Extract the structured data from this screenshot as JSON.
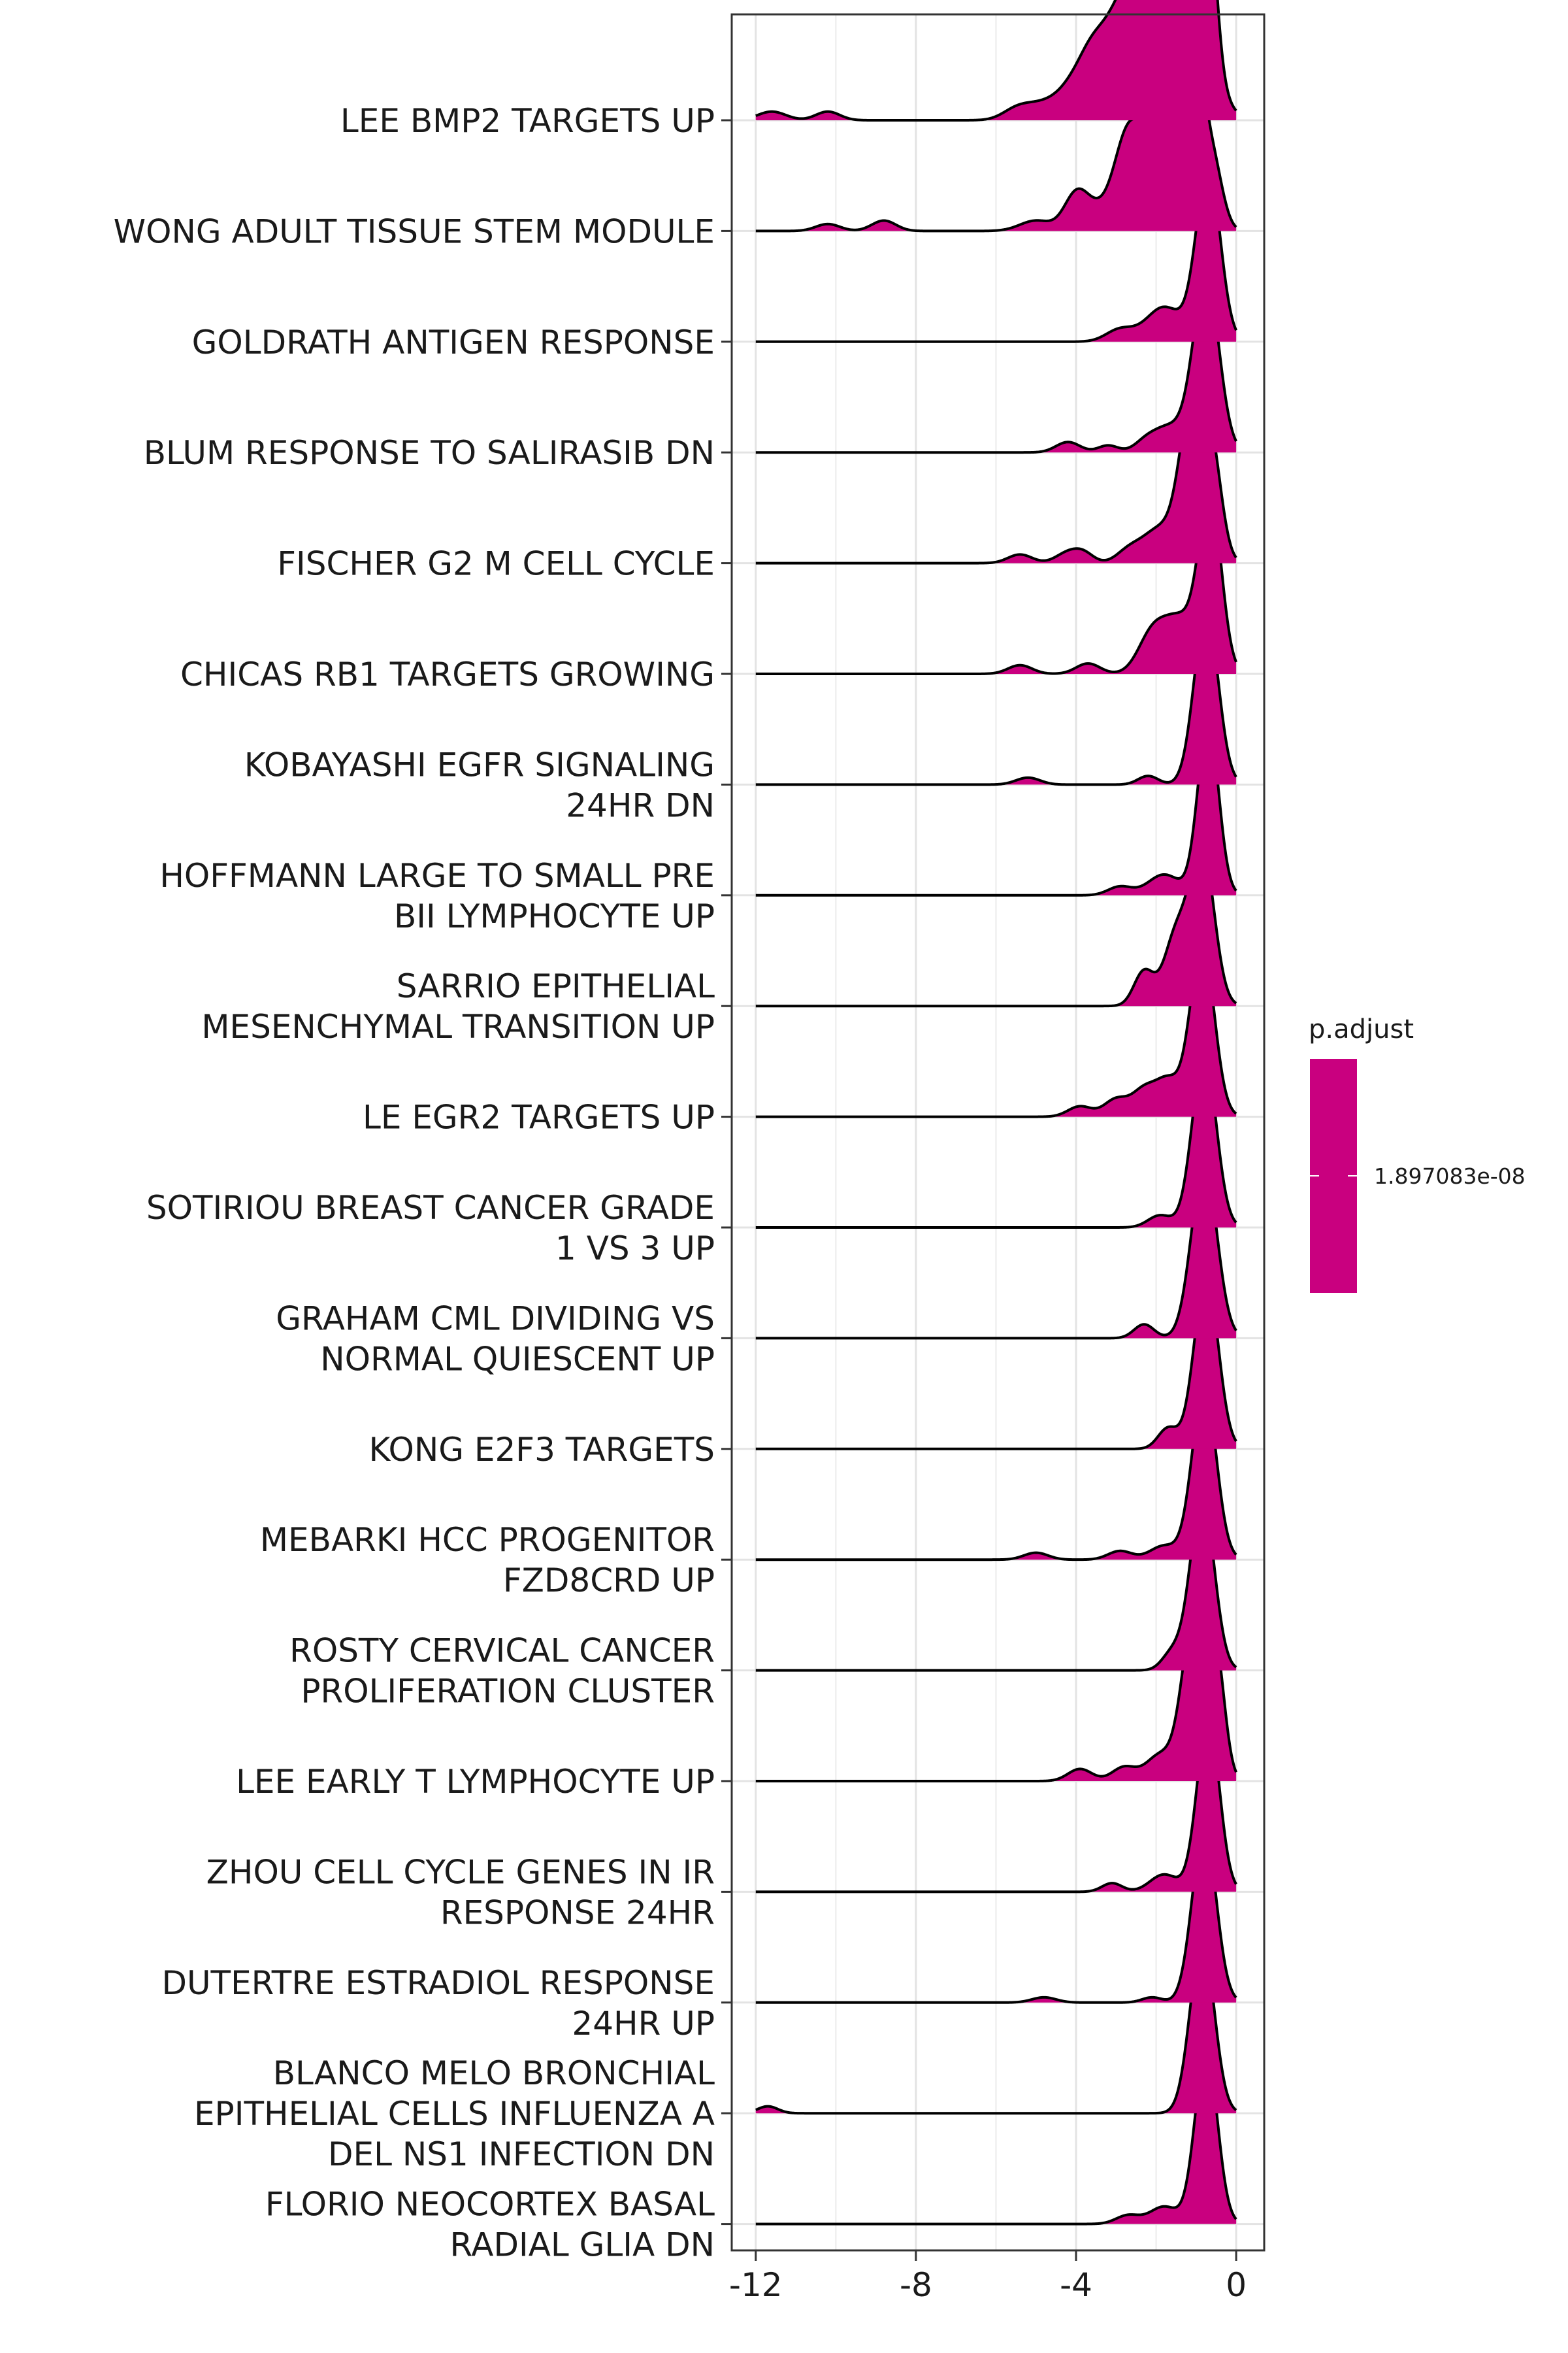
{
  "chart_data": {
    "type": "ridgeline",
    "title": "",
    "xlabel": "",
    "ylabel": "",
    "xlim": [
      -12.6,
      0.7
    ],
    "x_ticks": [
      -12,
      -8,
      -4,
      0
    ],
    "x_tick_labels": [
      "-12",
      "-8",
      "-4",
      "0"
    ],
    "grid": true,
    "fill_color": "#C9007F",
    "legend": {
      "title": "p.adjust",
      "position": "right",
      "entries": [
        "1.897083e-08"
      ]
    },
    "x_range": [
      -12,
      0
    ],
    "categories": [
      {
        "label": [
          "LEE BMP2 TARGETS UP"
        ],
        "range": [
          -12,
          0
        ],
        "peaks": [
          [
            -11.6,
            0.35,
            0.05
          ],
          [
            -10.2,
            0.3,
            0.05
          ],
          [
            -5.5,
            0.35,
            0.05
          ],
          [
            -5.0,
            0.45,
            0.05
          ],
          [
            -4.6,
            0.45,
            0.05
          ],
          [
            -4.0,
            0.4,
            0.14
          ],
          [
            -3.6,
            0.3,
            0.1
          ],
          [
            -3.0,
            0.6,
            0.3
          ],
          [
            -2.2,
            0.8,
            0.53
          ],
          [
            -1.8,
            0.6,
            0.45
          ],
          [
            -1.1,
            0.5,
            0.4
          ],
          [
            -0.75,
            0.22,
            1.0
          ]
        ]
      },
      {
        "label": [
          "WONG ADULT TISSUE STEM MODULE"
        ],
        "range": [
          -12,
          0
        ],
        "peaks": [
          [
            -10.2,
            0.3,
            0.04
          ],
          [
            -8.8,
            0.3,
            0.06
          ],
          [
            -5.0,
            0.4,
            0.06
          ],
          [
            -4.0,
            0.3,
            0.2
          ],
          [
            -3.5,
            0.35,
            0.1
          ],
          [
            -2.7,
            0.35,
            0.55
          ],
          [
            -2.0,
            0.35,
            0.45
          ],
          [
            -1.5,
            0.4,
            0.4
          ],
          [
            -1.05,
            0.22,
            0.9
          ],
          [
            -0.6,
            0.25,
            0.4
          ]
        ]
      },
      {
        "label": [
          "GOLDRATH ANTIGEN RESPONSE"
        ],
        "range": [
          -12,
          0
        ],
        "peaks": [
          [
            -2.9,
            0.35,
            0.07
          ],
          [
            -1.8,
            0.45,
            0.2
          ],
          [
            -0.7,
            0.3,
            1.0
          ]
        ]
      },
      {
        "label": [
          "BLUM RESPONSE TO SALIRASIB DN"
        ],
        "range": [
          -12,
          0
        ],
        "peaks": [
          [
            -4.2,
            0.3,
            0.06
          ],
          [
            -3.2,
            0.25,
            0.04
          ],
          [
            -2.3,
            0.25,
            0.03
          ],
          [
            -1.7,
            0.45,
            0.15
          ],
          [
            -0.75,
            0.32,
            1.0
          ]
        ]
      },
      {
        "label": [
          "FISCHER G2 M CELL CYCLE"
        ],
        "range": [
          -12,
          0
        ],
        "peaks": [
          [
            -5.4,
            0.3,
            0.05
          ],
          [
            -4.2,
            0.3,
            0.06
          ],
          [
            -3.8,
            0.25,
            0.05
          ],
          [
            -2.7,
            0.3,
            0.06
          ],
          [
            -1.9,
            0.45,
            0.2
          ],
          [
            -1.1,
            0.3,
            0.9
          ],
          [
            -0.6,
            0.25,
            0.55
          ]
        ]
      },
      {
        "label": [
          "CHICAS RB1 TARGETS GROWING"
        ],
        "range": [
          -12,
          0
        ],
        "peaks": [
          [
            -5.4,
            0.3,
            0.05
          ],
          [
            -3.7,
            0.3,
            0.06
          ],
          [
            -2.1,
            0.35,
            0.22
          ],
          [
            -1.4,
            0.4,
            0.3
          ],
          [
            -0.65,
            0.28,
            1.0
          ]
        ]
      },
      {
        "label": [
          "KOBAYASHI EGFR SIGNALING",
          "24HR DN"
        ],
        "range": [
          -12,
          0
        ],
        "peaks": [
          [
            -5.2,
            0.3,
            0.04
          ],
          [
            -2.2,
            0.25,
            0.05
          ],
          [
            -0.75,
            0.3,
            1.0
          ]
        ]
      },
      {
        "label": [
          "HOFFMANN LARGE TO SMALL PRE",
          "BII LYMPHOCYTE UP"
        ],
        "range": [
          -12,
          0
        ],
        "peaks": [
          [
            -2.9,
            0.3,
            0.05
          ],
          [
            -1.8,
            0.4,
            0.12
          ],
          [
            -0.7,
            0.26,
            1.0
          ]
        ]
      },
      {
        "label": [
          "SARRIO EPITHELIAL",
          "MESENCHYMAL TRANSITION UP"
        ],
        "range": [
          -12,
          0
        ],
        "peaks": [
          [
            -2.3,
            0.25,
            0.2
          ],
          [
            -1.5,
            0.3,
            0.4
          ],
          [
            -0.85,
            0.3,
            0.9
          ]
        ]
      },
      {
        "label": [
          "LE EGR2 TARGETS UP"
        ],
        "range": [
          -12,
          0
        ],
        "peaks": [
          [
            -3.9,
            0.3,
            0.06
          ],
          [
            -3.0,
            0.3,
            0.1
          ],
          [
            -2.3,
            0.3,
            0.15
          ],
          [
            -1.7,
            0.3,
            0.2
          ],
          [
            -0.85,
            0.3,
            1.0
          ]
        ]
      },
      {
        "label": [
          "SOTIRIOU BREAST CANCER GRADE",
          "1 VS 3 UP"
        ],
        "range": [
          -12,
          0
        ],
        "peaks": [
          [
            -1.9,
            0.3,
            0.07
          ],
          [
            -0.8,
            0.3,
            1.0
          ]
        ]
      },
      {
        "label": [
          "GRAHAM CML DIVIDING VS",
          "NORMAL QUIESCENT UP"
        ],
        "range": [
          -12,
          0
        ],
        "peaks": [
          [
            -2.3,
            0.25,
            0.08
          ],
          [
            -0.8,
            0.32,
            1.0
          ]
        ]
      },
      {
        "label": [
          "KONG E2F3 TARGETS"
        ],
        "range": [
          -12,
          0
        ],
        "peaks": [
          [
            -1.7,
            0.25,
            0.12
          ],
          [
            -0.75,
            0.3,
            1.0
          ]
        ]
      },
      {
        "label": [
          "MEBARKI HCC PROGENITOR",
          "FZD8CRD UP"
        ],
        "range": [
          -12,
          0
        ],
        "peaks": [
          [
            -5.0,
            0.3,
            0.04
          ],
          [
            -2.9,
            0.3,
            0.05
          ],
          [
            -1.8,
            0.35,
            0.08
          ],
          [
            -0.8,
            0.3,
            1.0
          ]
        ]
      },
      {
        "label": [
          "ROSTY CERVICAL CANCER",
          "PROLIFERATION CLUSTER"
        ],
        "range": [
          -12,
          0
        ],
        "peaks": [
          [
            -1.6,
            0.25,
            0.1
          ],
          [
            -0.85,
            0.3,
            1.0
          ]
        ]
      },
      {
        "label": [
          "LEE EARLY T LYMPHOCYTE UP"
        ],
        "range": [
          -12,
          0
        ],
        "peaks": [
          [
            -3.9,
            0.3,
            0.07
          ],
          [
            -2.8,
            0.3,
            0.08
          ],
          [
            -1.9,
            0.35,
            0.15
          ],
          [
            -1.05,
            0.3,
            0.95
          ],
          [
            -0.5,
            0.22,
            0.65
          ]
        ]
      },
      {
        "label": [
          "ZHOU CELL CYCLE GENES IN IR",
          "RESPONSE 24HR"
        ],
        "range": [
          -12,
          0
        ],
        "peaks": [
          [
            -3.1,
            0.25,
            0.05
          ],
          [
            -1.8,
            0.35,
            0.1
          ],
          [
            -0.7,
            0.28,
            1.0
          ]
        ]
      },
      {
        "label": [
          "DUTERTRE ESTRADIOL RESPONSE",
          "24HR UP"
        ],
        "range": [
          -12,
          0
        ],
        "peaks": [
          [
            -4.8,
            0.3,
            0.03
          ],
          [
            -2.1,
            0.25,
            0.03
          ],
          [
            -0.8,
            0.3,
            1.0
          ]
        ]
      },
      {
        "label": [
          "BLANCO MELO BRONCHIAL",
          "EPITHELIAL CELLS INFLUENZA A",
          "DEL NS1 INFECTION DN"
        ],
        "range": [
          -12,
          0
        ],
        "peaks": [
          [
            -11.7,
            0.25,
            0.04
          ],
          [
            -0.85,
            0.3,
            1.0
          ]
        ]
      },
      {
        "label": [
          "FLORIO NEOCORTEX BASAL",
          "RADIAL GLIA DN"
        ],
        "range": [
          -12,
          0
        ],
        "peaks": [
          [
            -2.7,
            0.3,
            0.05
          ],
          [
            -1.8,
            0.35,
            0.1
          ],
          [
            -0.75,
            0.28,
            1.0
          ]
        ]
      }
    ]
  }
}
